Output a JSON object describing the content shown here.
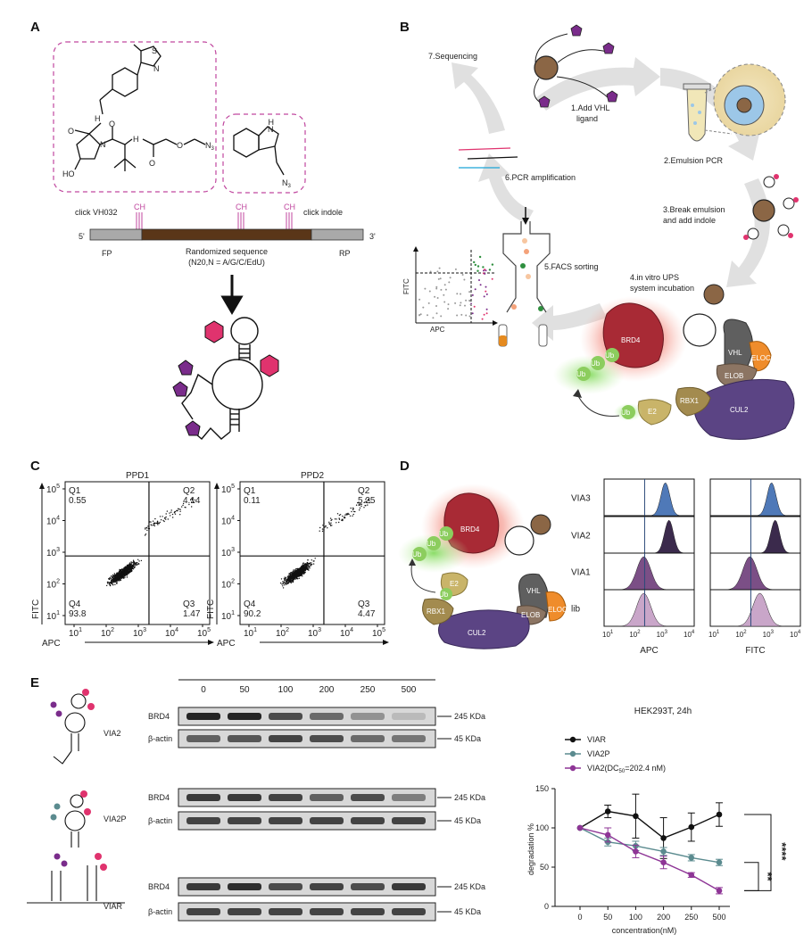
{
  "panels": {
    "a": "A",
    "b": "B",
    "c": "C",
    "d": "D",
    "e": "E"
  },
  "panelA": {
    "n3_1": "N",
    "n3_1sub": "3",
    "n3_2": "N",
    "n3_2sub": "3",
    "atoms": {
      "s": "S",
      "n": "N",
      "h": "H",
      "o": "O",
      "nh": "H",
      "ho": "HO"
    },
    "click_vh032": "click VH032",
    "click_indole": "click indole",
    "alkyne": "CH",
    "fp": "FP",
    "rp": "RP",
    "five": "5'",
    "three": "3'",
    "rand1": "Randomized sequence",
    "rand2": "(N20,N = A/G/C/EdU)"
  },
  "panelB": {
    "s7": "7.Sequencing",
    "s1a": "1.Add VHL",
    "s1b": "ligand",
    "s2": "2.Emulsion PCR",
    "s3a": "3.Break emulsion",
    "s3b": "and add indole",
    "s4a": "4.in vitro UPS",
    "s4b": "system incubation",
    "s5": "5.FACS sorting",
    "s6": "6.PCR amplification",
    "fitc": "FITC",
    "apc": "APC",
    "brd4": "BRD4",
    "vhl": "VHL",
    "eloc": "ELOC",
    "elob": "ELOB",
    "cul2": "CUL2",
    "rbx1": "RBX1",
    "e2": "E2",
    "ub": "Ub"
  },
  "panelC": {
    "plots": [
      {
        "title": "PPD1",
        "q1": "Q1",
        "q1v": "0.55",
        "q2": "Q2",
        "q2v": "4.14",
        "q3": "Q3",
        "q3v": "1.47",
        "q4": "Q4",
        "q4v": "93.8"
      },
      {
        "title": "PPD2",
        "q1": "Q1",
        "q1v": "0.11",
        "q2": "Q2",
        "q2v": "5.25",
        "q3": "Q3",
        "q3v": "4.47",
        "q4": "Q4",
        "q4v": "90.2"
      }
    ],
    "xlabel": "APC",
    "ylabel": "FITC",
    "ticks": [
      "10",
      "10",
      "10",
      "10",
      "10"
    ],
    "exps": [
      "1",
      "2",
      "3",
      "4",
      "5"
    ]
  },
  "panelD": {
    "rows": [
      "VIA3",
      "VIA2",
      "VIA1",
      "lib"
    ],
    "xlabel_apc": "APC",
    "xlabel_fitc": "FITC",
    "ticks": [
      "10",
      "10",
      "10",
      "10"
    ],
    "exps": [
      "1",
      "2",
      "3",
      "4"
    ],
    "brd4": "BRD4",
    "vhl": "VHL",
    "eloc": "ELOC",
    "elob": "ELOB",
    "cul2": "CUL2",
    "rbx1": "RBX1",
    "e2": "E2",
    "ub": "Ub"
  },
  "panelE": {
    "conc": [
      "0",
      "50",
      "100",
      "200",
      "250",
      "500"
    ],
    "blots": [
      {
        "name": "VIA2",
        "band1": "BRD4",
        "band2": "β-actin",
        "kda1": "245 KDa",
        "kda2": "45 KDa"
      },
      {
        "name": "VIA2P",
        "band1": "BRD4",
        "band2": "β-actin",
        "kda1": "245 KDa",
        "kda2": "45 KDa"
      },
      {
        "name": "VIAR",
        "band1": "BRD4",
        "band2": "β-actin",
        "kda1": "245 KDa",
        "kda2": "45 KDa"
      }
    ]
  },
  "chart_data": {
    "type": "line",
    "title": "HEK293T, 24h",
    "xlabel": "concentration(nM)",
    "ylabel": "degradation %",
    "categories": [
      "0",
      "50",
      "100",
      "200",
      "250",
      "500"
    ],
    "ylim": [
      0,
      150
    ],
    "yticks": [
      "0",
      "50",
      "100",
      "150"
    ],
    "series": [
      {
        "name": "VIAR",
        "color": "#111111",
        "values": [
          100,
          121,
          115,
          87,
          101,
          117
        ],
        "err": [
          0,
          8,
          28,
          26,
          18,
          15
        ]
      },
      {
        "name": "VIA2P",
        "color": "#5b8b8f",
        "values": [
          100,
          82,
          77,
          70,
          62,
          56
        ],
        "err": [
          0,
          5,
          6,
          5,
          4,
          4
        ]
      },
      {
        "name": "VIA2(DC",
        "name_sub": "50",
        "name_tail": "=202.4 nM)",
        "color": "#8e3596",
        "values": [
          100,
          91,
          70,
          56,
          40,
          20
        ],
        "err": [
          0,
          9,
          8,
          8,
          3,
          4
        ]
      }
    ],
    "significance": [
      {
        "label": "****"
      },
      {
        "label": "**"
      }
    ],
    "legend": "top-left"
  }
}
